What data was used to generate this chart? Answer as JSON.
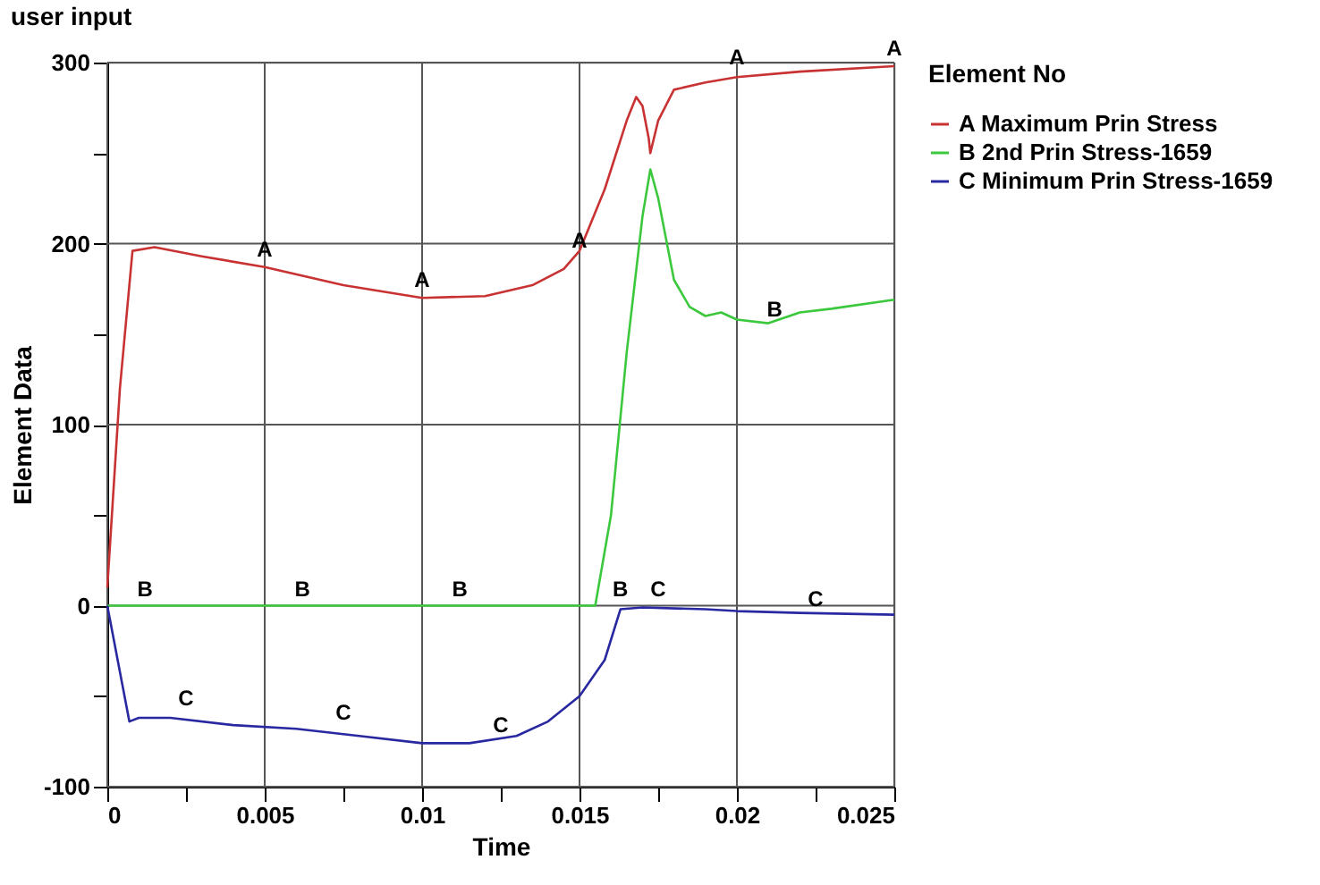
{
  "chart_data": {
    "type": "line",
    "title": "user input",
    "xlabel": "Time",
    "ylabel": "Element Data",
    "legend_title": "Element No",
    "legend": "right",
    "grid": true,
    "line_style": "solid",
    "marker": "none",
    "xlim": [
      0,
      0.025
    ],
    "ylim": [
      -100,
      300
    ],
    "xticks": [
      0,
      {
        "value": 0.0025,
        "label": null
      },
      0.005,
      {
        "value": 0.0075,
        "label": null
      },
      0.01,
      {
        "value": 0.0125,
        "label": null
      },
      0.015,
      {
        "value": 0.0175,
        "label": null
      },
      0.02,
      {
        "value": 0.0225,
        "label": null
      },
      0.025
    ],
    "yticks": [
      -100,
      {
        "value": -50,
        "label": null
      },
      0,
      {
        "value": 50,
        "label": null
      },
      100,
      {
        "value": 150,
        "label": null
      },
      200,
      {
        "value": 250,
        "label": null
      },
      300
    ],
    "series": [
      {
        "name": "A Maximum Prin Stress",
        "color": "#c83232",
        "x": [
          0,
          0.0004,
          0.0008,
          0.0015,
          0.003,
          0.005,
          0.0075,
          0.01,
          0.012,
          0.0135,
          0.0145,
          0.015,
          0.0158,
          0.0165,
          0.0168,
          0.017,
          0.0172,
          0.01725,
          0.0175,
          0.018,
          0.019,
          0.02,
          0.022,
          0.025
        ],
        "values": [
          10,
          120,
          196,
          198,
          193,
          187,
          177,
          170,
          171,
          177,
          186,
          196,
          230,
          268,
          281,
          276,
          258,
          250,
          268,
          285,
          289,
          292,
          295,
          298
        ]
      },
      {
        "name": "B 2nd Prin Stress-1659",
        "color": "#3cc83c",
        "x": [
          0,
          0.0155,
          0.016,
          0.0165,
          0.017,
          0.01725,
          0.0175,
          0.018,
          0.0185,
          0.019,
          0.0195,
          0.02,
          0.021,
          0.022,
          0.023,
          0.025
        ],
        "values": [
          0,
          0,
          50,
          140,
          215,
          241,
          225,
          180,
          165,
          160,
          162,
          158,
          156,
          162,
          164,
          169
        ]
      },
      {
        "name": "C Minimum Prin Stress-1659",
        "color": "#2828a0",
        "x": [
          0,
          0.0007,
          0.001,
          0.002,
          0.004,
          0.006,
          0.008,
          0.01,
          0.0115,
          0.013,
          0.014,
          0.015,
          0.0158,
          0.0163,
          0.017,
          0.019,
          0.02,
          0.022,
          0.025
        ],
        "values": [
          0,
          -64,
          -62,
          -62,
          -66,
          -68,
          -72,
          -76,
          -76,
          -72,
          -64,
          -50,
          -30,
          -2,
          -1,
          -2,
          -3,
          -4,
          -5
        ]
      }
    ],
    "annotations": [
      {
        "text": "A",
        "x": 0.005,
        "y": 190
      },
      {
        "text": "A",
        "x": 0.01,
        "y": 173
      },
      {
        "text": "A",
        "x": 0.015,
        "y": 195
      },
      {
        "text": "A",
        "x": 0.02,
        "y": 296
      },
      {
        "text": "A",
        "x": 0.025,
        "y": 301
      },
      {
        "text": "B",
        "x": 0.0012,
        "y": 2
      },
      {
        "text": "B",
        "x": 0.0062,
        "y": 2
      },
      {
        "text": "B",
        "x": 0.0112,
        "y": 2
      },
      {
        "text": "B",
        "x": 0.0163,
        "y": 2
      },
      {
        "text": "B",
        "x": 0.0212,
        "y": 157
      },
      {
        "text": "C",
        "x": 0.0025,
        "y": -58
      },
      {
        "text": "C",
        "x": 0.0075,
        "y": -66
      },
      {
        "text": "C",
        "x": 0.0125,
        "y": -73
      },
      {
        "text": "C",
        "x": 0.0175,
        "y": 2
      },
      {
        "text": "C",
        "x": 0.0225,
        "y": -3
      }
    ]
  }
}
